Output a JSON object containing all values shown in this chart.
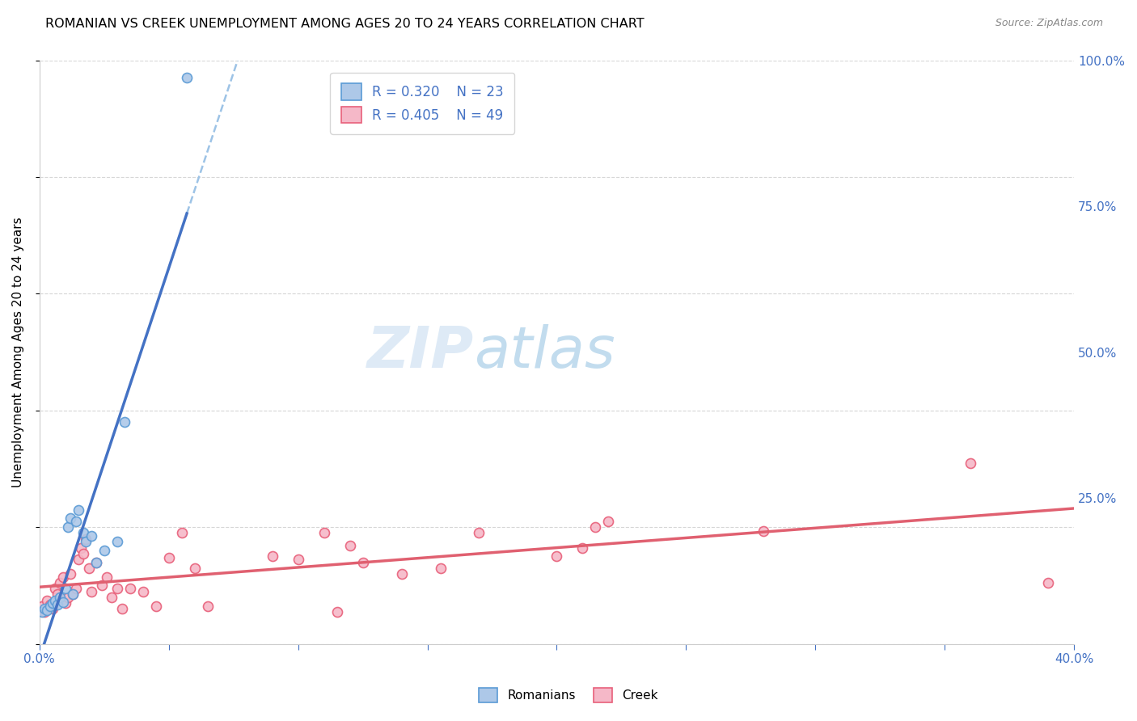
{
  "title": "ROMANIAN VS CREEK UNEMPLOYMENT AMONG AGES 20 TO 24 YEARS CORRELATION CHART",
  "source": "Source: ZipAtlas.com",
  "ylabel": "Unemployment Among Ages 20 to 24 years",
  "xlim": [
    0.0,
    0.4
  ],
  "ylim": [
    0.0,
    1.0
  ],
  "xticks": [
    0.0,
    0.05,
    0.1,
    0.15,
    0.2,
    0.25,
    0.3,
    0.35,
    0.4
  ],
  "xticklabels": [
    "0.0%",
    "",
    "",
    "",
    "",
    "",
    "",
    "",
    "40.0%"
  ],
  "ytick_positions": [
    0.0,
    0.25,
    0.5,
    0.75,
    1.0
  ],
  "yticklabels": [
    "",
    "25.0%",
    "50.0%",
    "75.0%",
    "100.0%"
  ],
  "romanian_color": "#adc8e8",
  "romanian_edge": "#5b9bd5",
  "creek_color": "#f5b8c8",
  "creek_edge": "#e8607a",
  "trendline_romanian_color": "#4472c4",
  "trendline_creek_color": "#e06070",
  "trendline_dashed_color": "#9dc3e6",
  "watermark_zip": "ZIP",
  "watermark_atlas": "atlas",
  "legend_R_romanian": "R = 0.320",
  "legend_N_romanian": "N = 23",
  "legend_R_creek": "R = 0.405",
  "legend_N_creek": "N = 49",
  "romanian_x": [
    0.001,
    0.002,
    0.003,
    0.004,
    0.005,
    0.006,
    0.007,
    0.008,
    0.009,
    0.01,
    0.011,
    0.012,
    0.013,
    0.014,
    0.015,
    0.017,
    0.018,
    0.02,
    0.022,
    0.025,
    0.03,
    0.033,
    0.057
  ],
  "romanian_y": [
    0.055,
    0.06,
    0.058,
    0.065,
    0.07,
    0.075,
    0.068,
    0.08,
    0.072,
    0.095,
    0.2,
    0.215,
    0.085,
    0.21,
    0.23,
    0.19,
    0.175,
    0.185,
    0.14,
    0.16,
    0.175,
    0.38,
    0.97
  ],
  "creek_x": [
    0.001,
    0.002,
    0.003,
    0.004,
    0.005,
    0.006,
    0.007,
    0.008,
    0.009,
    0.01,
    0.011,
    0.012,
    0.013,
    0.014,
    0.015,
    0.016,
    0.017,
    0.018,
    0.019,
    0.02,
    0.022,
    0.024,
    0.026,
    0.028,
    0.03,
    0.032,
    0.035,
    0.04,
    0.045,
    0.05,
    0.055,
    0.06,
    0.065,
    0.09,
    0.1,
    0.11,
    0.115,
    0.12,
    0.125,
    0.14,
    0.155,
    0.17,
    0.2,
    0.21,
    0.215,
    0.22,
    0.28,
    0.36,
    0.39
  ],
  "creek_y": [
    0.065,
    0.055,
    0.075,
    0.068,
    0.06,
    0.095,
    0.085,
    0.105,
    0.115,
    0.07,
    0.08,
    0.12,
    0.085,
    0.095,
    0.145,
    0.165,
    0.155,
    0.18,
    0.13,
    0.09,
    0.14,
    0.1,
    0.115,
    0.08,
    0.095,
    0.06,
    0.095,
    0.09,
    0.065,
    0.148,
    0.19,
    0.13,
    0.065,
    0.15,
    0.145,
    0.19,
    0.055,
    0.168,
    0.14,
    0.12,
    0.13,
    0.19,
    0.15,
    0.165,
    0.2,
    0.21,
    0.193,
    0.31,
    0.105
  ],
  "marker_size": 75,
  "axis_color": "#4472c4",
  "grid_color": "#cccccc",
  "background_color": "#ffffff"
}
